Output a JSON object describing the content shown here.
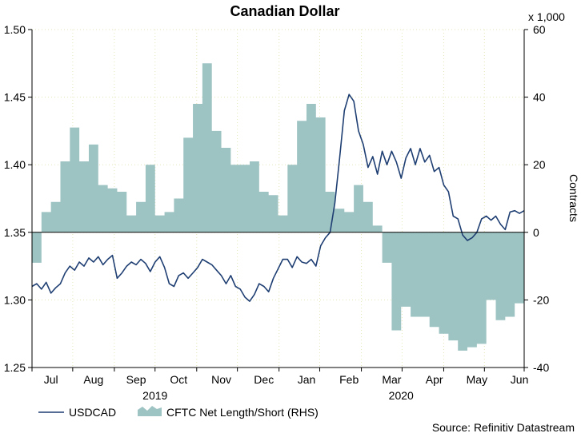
{
  "chart_data": {
    "type": "line+area",
    "title": "Canadian Dollar",
    "right_axis_unit": "x 1,000",
    "right_axis_label": "Contracts",
    "left_axis": {
      "ylim": [
        1.25,
        1.5
      ],
      "ticks": [
        "1.25",
        "1.30",
        "1.35",
        "1.40",
        "1.45",
        "1.50"
      ]
    },
    "right_axis": {
      "ylim": [
        -40,
        60
      ],
      "ticks": [
        "-40",
        "-20",
        "0",
        "20",
        "40",
        "60"
      ]
    },
    "months": [
      "Jul",
      "Aug",
      "Sep",
      "Oct",
      "Nov",
      "Dec",
      "Jan",
      "Feb",
      "Mar",
      "Apr",
      "May",
      "Jun"
    ],
    "years": [
      "2019",
      "2020"
    ],
    "x_range_weeks": [
      0,
      52
    ],
    "month_positions_weeks": [
      2,
      6.5,
      11,
      15.5,
      20,
      24.5,
      29,
      33.5,
      38,
      42.5,
      47,
      51.5
    ],
    "month_boundaries_weeks": [
      0,
      4.3,
      8.7,
      13,
      17.4,
      21.7,
      26.1,
      30.4,
      34.8,
      39.1,
      43.5,
      47.8,
      52
    ],
    "year_positions_weeks": [
      13,
      39
    ],
    "series": [
      {
        "name": "USDCAD",
        "axis": "left",
        "color": "#1f3f73",
        "x_weeks": [
          0,
          0.5,
          1,
          1.5,
          2,
          2.5,
          3,
          3.5,
          4,
          4.5,
          5,
          5.5,
          6,
          6.5,
          7,
          7.5,
          8,
          8.5,
          9,
          9.5,
          10,
          10.5,
          11,
          11.5,
          12,
          12.5,
          13,
          13.5,
          14,
          14.5,
          15,
          15.5,
          16,
          16.5,
          17,
          17.5,
          18,
          18.5,
          19,
          19.5,
          20,
          20.5,
          21,
          21.5,
          22,
          22.5,
          23,
          23.5,
          24,
          24.5,
          25,
          25.5,
          26,
          26.5,
          27,
          27.5,
          28,
          28.5,
          29,
          29.5,
          30,
          30.5,
          31,
          31.5,
          32,
          32.5,
          33,
          33.5,
          34,
          34.5,
          35,
          35.5,
          36,
          36.5,
          37,
          37.5,
          38,
          38.5,
          39,
          39.5,
          40,
          40.5,
          41,
          41.5,
          42,
          42.5,
          43,
          43.5,
          44,
          44.5,
          45,
          45.5,
          46,
          46.5,
          47,
          47.5,
          48,
          48.5,
          49,
          49.5,
          50,
          50.5,
          51,
          51.5,
          52
        ],
        "values": [
          1.31,
          1.312,
          1.308,
          1.313,
          1.305,
          1.309,
          1.312,
          1.32,
          1.325,
          1.322,
          1.328,
          1.325,
          1.331,
          1.328,
          1.332,
          1.326,
          1.33,
          1.333,
          1.316,
          1.32,
          1.325,
          1.328,
          1.326,
          1.33,
          1.327,
          1.321,
          1.328,
          1.332,
          1.324,
          1.312,
          1.31,
          1.318,
          1.32,
          1.316,
          1.32,
          1.324,
          1.33,
          1.328,
          1.326,
          1.322,
          1.318,
          1.312,
          1.318,
          1.31,
          1.308,
          1.302,
          1.299,
          1.304,
          1.312,
          1.31,
          1.306,
          1.316,
          1.323,
          1.33,
          1.33,
          1.324,
          1.332,
          1.328,
          1.327,
          1.33,
          1.325,
          1.34,
          1.346,
          1.35,
          1.372,
          1.405,
          1.44,
          1.452,
          1.447,
          1.425,
          1.415,
          1.398,
          1.406,
          1.393,
          1.41,
          1.4,
          1.41,
          1.402,
          1.39,
          1.405,
          1.412,
          1.4,
          1.412,
          1.402,
          1.407,
          1.395,
          1.398,
          1.385,
          1.38,
          1.362,
          1.36,
          1.348,
          1.344,
          1.346,
          1.35,
          1.36,
          1.362,
          1.359,
          1.362,
          1.356,
          1.352,
          1.365,
          1.366,
          1.364,
          1.366
        ]
      },
      {
        "name": "CFTC Net Length/Short (RHS)",
        "axis": "right",
        "color": "#9ec3c3",
        "x_weeks": [
          0,
          1,
          2,
          3,
          4,
          5,
          6,
          7,
          8,
          9,
          10,
          11,
          12,
          13,
          14,
          15,
          16,
          17,
          18,
          19,
          20,
          21,
          22,
          23,
          24,
          25,
          26,
          27,
          28,
          29,
          30,
          31,
          32,
          33,
          34,
          35,
          36,
          37,
          38,
          39,
          40,
          41,
          42,
          43,
          44,
          45,
          46,
          47,
          48,
          49,
          50,
          51,
          52
        ],
        "values": [
          -9,
          6,
          9,
          21,
          31,
          21,
          26,
          14,
          13,
          12,
          5,
          9,
          20,
          5,
          6,
          10,
          28,
          38,
          50,
          30,
          25,
          20,
          20,
          21,
          12,
          11,
          5,
          20,
          33,
          38,
          34,
          12,
          7,
          6,
          14,
          9,
          2,
          -9,
          -29,
          -22,
          -25,
          -25,
          -28,
          -30,
          -32,
          -35,
          -34,
          -33,
          -20,
          -26,
          -25,
          -21,
          -21
        ]
      }
    ],
    "legend": [
      "USDCAD",
      "CFTC Net Length/Short (RHS)"
    ],
    "legend_position": "bottom-left",
    "source": "Source: Refinitiv Datastream",
    "grid": true
  }
}
